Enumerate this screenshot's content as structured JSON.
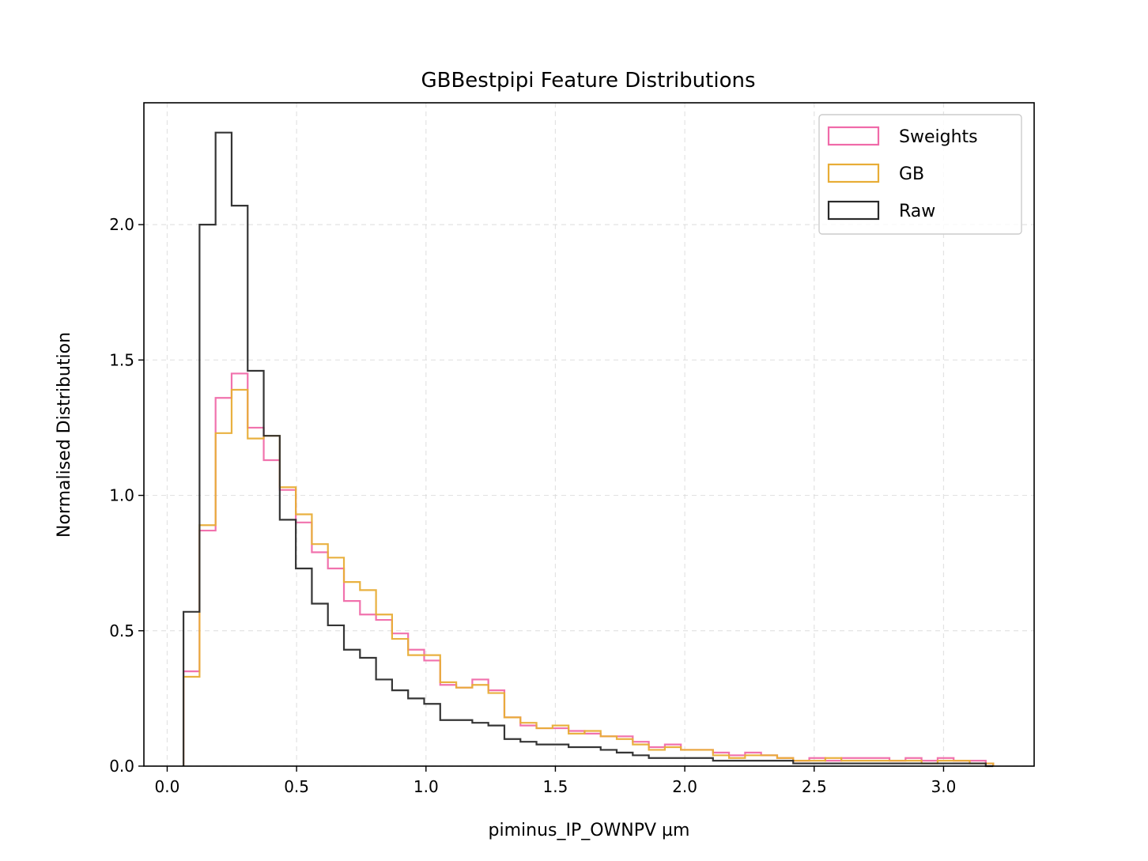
{
  "chart_data": {
    "type": "histogram-step",
    "title": "GBBestpipi Feature Distributions",
    "xlabel": "piminus_IP_OWNPV µm",
    "ylabel": "Normalised Distribution",
    "xlim": [
      -0.09,
      3.35
    ],
    "ylim": [
      0,
      2.45
    ],
    "xticks": [
      0.0,
      0.5,
      1.0,
      1.5,
      2.0,
      2.5,
      3.0
    ],
    "xtick_labels": [
      "0.0",
      "0.5",
      "1.0",
      "1.5",
      "2.0",
      "2.5",
      "3.0"
    ],
    "yticks": [
      0.0,
      0.5,
      1.0,
      1.5,
      2.0
    ],
    "ytick_labels": [
      "0.0",
      "0.5",
      "1.0",
      "1.5",
      "2.0"
    ],
    "grid": true,
    "legend_position": "top-right",
    "bin_edges": [
      0.063,
      0.125,
      0.187,
      0.249,
      0.311,
      0.373,
      0.435,
      0.497,
      0.559,
      0.621,
      0.683,
      0.745,
      0.807,
      0.869,
      0.931,
      0.993,
      1.055,
      1.117,
      1.179,
      1.241,
      1.303,
      1.365,
      1.427,
      1.489,
      1.551,
      1.613,
      1.675,
      1.737,
      1.799,
      1.861,
      1.923,
      1.985,
      2.047,
      2.109,
      2.171,
      2.233,
      2.295,
      2.357,
      2.419,
      2.481,
      2.543,
      2.605,
      2.667,
      2.729,
      2.791,
      2.853,
      2.915,
      2.977,
      3.039,
      3.101,
      3.163,
      3.192
    ],
    "series": [
      {
        "name": "Sweights",
        "color": "#f06aa9",
        "values": [
          0.35,
          0.87,
          1.36,
          1.45,
          1.25,
          1.13,
          1.02,
          0.9,
          0.79,
          0.73,
          0.61,
          0.56,
          0.54,
          0.49,
          0.43,
          0.39,
          0.3,
          0.29,
          0.32,
          0.28,
          0.18,
          0.15,
          0.14,
          0.14,
          0.13,
          0.12,
          0.11,
          0.11,
          0.09,
          0.07,
          0.08,
          0.06,
          0.06,
          0.05,
          0.04,
          0.05,
          0.04,
          0.03,
          0.02,
          0.03,
          0.02,
          0.03,
          0.03,
          0.03,
          0.02,
          0.03,
          0.02,
          0.03,
          0.02,
          0.02,
          0.01
        ]
      },
      {
        "name": "GB",
        "color": "#e8ad36",
        "values": [
          0.33,
          0.89,
          1.23,
          1.39,
          1.21,
          1.22,
          1.03,
          0.93,
          0.82,
          0.77,
          0.68,
          0.65,
          0.56,
          0.47,
          0.41,
          0.41,
          0.31,
          0.29,
          0.3,
          0.27,
          0.18,
          0.16,
          0.14,
          0.15,
          0.12,
          0.13,
          0.11,
          0.1,
          0.08,
          0.06,
          0.07,
          0.06,
          0.06,
          0.04,
          0.03,
          0.04,
          0.04,
          0.03,
          0.02,
          0.02,
          0.03,
          0.02,
          0.02,
          0.02,
          0.02,
          0.02,
          0.01,
          0.02,
          0.02,
          0.01,
          0.01
        ]
      },
      {
        "name": "Raw",
        "color": "#2a2a2a",
        "values": [
          0.57,
          2.0,
          2.34,
          2.07,
          1.46,
          1.22,
          0.91,
          0.73,
          0.6,
          0.52,
          0.43,
          0.4,
          0.32,
          0.28,
          0.25,
          0.23,
          0.17,
          0.17,
          0.16,
          0.15,
          0.1,
          0.09,
          0.08,
          0.08,
          0.07,
          0.07,
          0.06,
          0.05,
          0.04,
          0.03,
          0.03,
          0.03,
          0.03,
          0.02,
          0.02,
          0.02,
          0.02,
          0.02,
          0.01,
          0.01,
          0.01,
          0.01,
          0.01,
          0.01,
          0.01,
          0.01,
          0.01,
          0.01,
          0.01,
          0.01,
          0.0
        ]
      }
    ]
  }
}
